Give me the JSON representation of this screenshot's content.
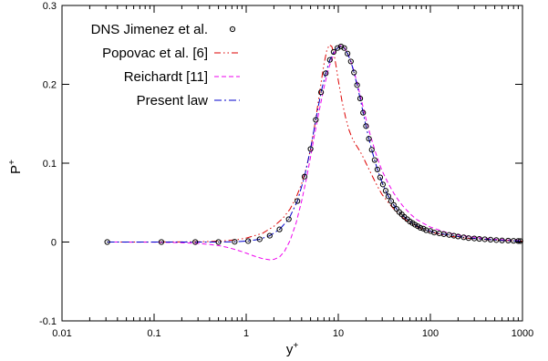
{
  "chart_data": {
    "type": "line",
    "xscale": "log",
    "xlabel": "y",
    "xlabel_sup": "+",
    "ylabel": "P",
    "ylabel_sup": "+",
    "xlim": [
      0.01,
      1000
    ],
    "ylim": [
      -0.1,
      0.3
    ],
    "x_ticks": [
      0.01,
      0.1,
      1,
      10,
      100,
      1000
    ],
    "x_tick_labels": [
      "0.01",
      "0.1",
      "1",
      "10",
      "100",
      "1000"
    ],
    "y_ticks": [
      -0.1,
      0,
      0.1,
      0.2,
      0.3
    ],
    "y_tick_labels": [
      "-0.1",
      "0",
      "0.1",
      "0.2",
      "0.3"
    ],
    "grid": false,
    "legend_position": "top-left",
    "series": [
      {
        "name": "DNS Jimenez et al.",
        "style": "markers",
        "marker": "open-circle-dot",
        "color": "#000000",
        "x": [
          0.031,
          0.12,
          0.28,
          0.5,
          0.75,
          1.05,
          1.4,
          1.8,
          2.3,
          2.9,
          3.6,
          4.3,
          5.0,
          5.7,
          6.5,
          7.3,
          8.1,
          8.9,
          9.8,
          10.7,
          11.6,
          12.6,
          13.7,
          14.8,
          16.0,
          17.3,
          18.6,
          20.0,
          21.5,
          23.1,
          24.8,
          26.6,
          28.5,
          30.5,
          32.7,
          35.0,
          37.5,
          40.0,
          43.0,
          46.0,
          49.0,
          52.0,
          56.0,
          60.0,
          64.0,
          68.0,
          73.0,
          78.0,
          84.0,
          90.0,
          100.0,
          110.0,
          125.0,
          140.0,
          160.0,
          180.0,
          200.0,
          230.0,
          260.0,
          300.0,
          340.0,
          390.0,
          450.0,
          520.0,
          600.0,
          700.0,
          800.0,
          900.0,
          950.0
        ],
        "y": [
          0.0,
          0.0,
          0.0,
          0.0,
          0.0003,
          0.0012,
          0.0035,
          0.008,
          0.016,
          0.029,
          0.052,
          0.083,
          0.118,
          0.155,
          0.19,
          0.214,
          0.231,
          0.241,
          0.246,
          0.248,
          0.246,
          0.239,
          0.229,
          0.215,
          0.199,
          0.182,
          0.164,
          0.147,
          0.131,
          0.117,
          0.104,
          0.092,
          0.082,
          0.073,
          0.065,
          0.058,
          0.052,
          0.047,
          0.042,
          0.038,
          0.035,
          0.032,
          0.029,
          0.026,
          0.024,
          0.022,
          0.02,
          0.018,
          0.017,
          0.015,
          0.014,
          0.012,
          0.011,
          0.01,
          0.009,
          0.008,
          0.007,
          0.006,
          0.005,
          0.0045,
          0.004,
          0.0035,
          0.003,
          0.0025,
          0.002,
          0.0018,
          0.0015,
          0.0013,
          0.0012
        ]
      },
      {
        "name": "Popovac et al. [6]",
        "style": "dash-dot-dot",
        "color": "#dd0000",
        "x": [
          0.031,
          0.1,
          0.3,
          0.5,
          0.8,
          1.0,
          1.5,
          2.0,
          2.5,
          3.0,
          3.5,
          4.0,
          4.5,
          5.0,
          5.5,
          6.0,
          6.5,
          7.0,
          7.5,
          8.0,
          8.5,
          9.0,
          9.5,
          10.0,
          11.0,
          12.0,
          13.0,
          14.0,
          15.0,
          16.0,
          17.0,
          18.0,
          20.0,
          22.0,
          25.0,
          28.0,
          30.0,
          35.0,
          40.0,
          45.0,
          50.0,
          60.0,
          70.0,
          80.0,
          100.0,
          150.0,
          200.0,
          300.0,
          500.0,
          1000.0
        ],
        "y": [
          0.0,
          0.0,
          0.0003,
          0.001,
          0.003,
          0.005,
          0.011,
          0.02,
          0.03,
          0.042,
          0.057,
          0.074,
          0.094,
          0.118,
          0.145,
          0.174,
          0.202,
          0.226,
          0.243,
          0.25,
          0.248,
          0.238,
          0.222,
          0.205,
          0.178,
          0.158,
          0.143,
          0.133,
          0.126,
          0.121,
          0.116,
          0.111,
          0.1,
          0.09,
          0.077,
          0.066,
          0.06,
          0.05,
          0.042,
          0.036,
          0.031,
          0.024,
          0.02,
          0.017,
          0.013,
          0.008,
          0.006,
          0.004,
          0.0025,
          0.0012
        ]
      },
      {
        "name": "Reichardt [11]",
        "style": "dashed",
        "color": "#ee00ee",
        "x": [
          0.031,
          0.1,
          0.2,
          0.3,
          0.4,
          0.5,
          0.6,
          0.7,
          0.8,
          0.9,
          1.0,
          1.2,
          1.5,
          1.8,
          2.0,
          2.3,
          2.6,
          3.0,
          3.5,
          4.0,
          4.5,
          5.0,
          5.5,
          6.0,
          6.5,
          7.0,
          7.5,
          8.0,
          8.5,
          9.0,
          9.5,
          10.0,
          10.5,
          11.0,
          11.5,
          12.0,
          13.0,
          14.0,
          15.0,
          16.0,
          18.0,
          20.0,
          22.0,
          25.0,
          28.0,
          30.0,
          35.0,
          40.0,
          45.0,
          50.0,
          60.0,
          70.0,
          80.0,
          100.0,
          150.0,
          200.0,
          300.0,
          500.0,
          700.0,
          1000.0
        ],
        "y": [
          0.0,
          -0.0002,
          -0.0008,
          -0.0018,
          -0.003,
          -0.0045,
          -0.0063,
          -0.0083,
          -0.0103,
          -0.0122,
          -0.014,
          -0.0175,
          -0.021,
          -0.0225,
          -0.022,
          -0.019,
          -0.012,
          0.002,
          0.025,
          0.052,
          0.08,
          0.108,
          0.135,
          0.158,
          0.178,
          0.196,
          0.211,
          0.223,
          0.232,
          0.239,
          0.244,
          0.247,
          0.249,
          0.249,
          0.247,
          0.244,
          0.236,
          0.226,
          0.214,
          0.202,
          0.178,
          0.156,
          0.138,
          0.116,
          0.099,
          0.09,
          0.074,
          0.062,
          0.053,
          0.046,
          0.036,
          0.029,
          0.025,
          0.019,
          0.012,
          0.009,
          0.006,
          0.0035,
          0.0025,
          0.0018
        ]
      },
      {
        "name": "Present law",
        "style": "dash-dot",
        "color": "#0000cc",
        "x": [
          0.031,
          0.1,
          0.3,
          0.5,
          0.75,
          1.0,
          1.4,
          1.8,
          2.3,
          2.9,
          3.6,
          4.3,
          5.0,
          5.7,
          6.5,
          7.3,
          8.1,
          8.9,
          9.8,
          10.7,
          11.6,
          12.6,
          13.7,
          14.8,
          16.0,
          17.3,
          18.6,
          20.0,
          21.5,
          23.1,
          24.8,
          26.6,
          28.5,
          30.5,
          32.7,
          35.0,
          37.5,
          40.0,
          43.0,
          46.0,
          49.0,
          52.0,
          56.0,
          60.0,
          64.0,
          68.0,
          73.0,
          78.0,
          84.0,
          90.0,
          100.0,
          110.0,
          125.0,
          140.0,
          160.0,
          180.0,
          200.0,
          230.0,
          260.0,
          300.0,
          340.0,
          390.0,
          450.0,
          520.0,
          600.0,
          700.0,
          800.0,
          900.0,
          1000.0
        ],
        "y": [
          0.0,
          0.0,
          0.0,
          0.0,
          0.0003,
          0.0012,
          0.0035,
          0.008,
          0.016,
          0.029,
          0.052,
          0.083,
          0.118,
          0.155,
          0.19,
          0.214,
          0.231,
          0.241,
          0.246,
          0.248,
          0.246,
          0.239,
          0.229,
          0.215,
          0.199,
          0.182,
          0.164,
          0.147,
          0.131,
          0.117,
          0.104,
          0.092,
          0.082,
          0.073,
          0.065,
          0.058,
          0.052,
          0.047,
          0.042,
          0.038,
          0.035,
          0.032,
          0.029,
          0.026,
          0.024,
          0.022,
          0.02,
          0.018,
          0.017,
          0.015,
          0.014,
          0.012,
          0.011,
          0.01,
          0.009,
          0.008,
          0.007,
          0.006,
          0.005,
          0.0045,
          0.004,
          0.0035,
          0.003,
          0.0025,
          0.002,
          0.0018,
          0.0015,
          0.0013,
          0.0012
        ]
      }
    ]
  }
}
